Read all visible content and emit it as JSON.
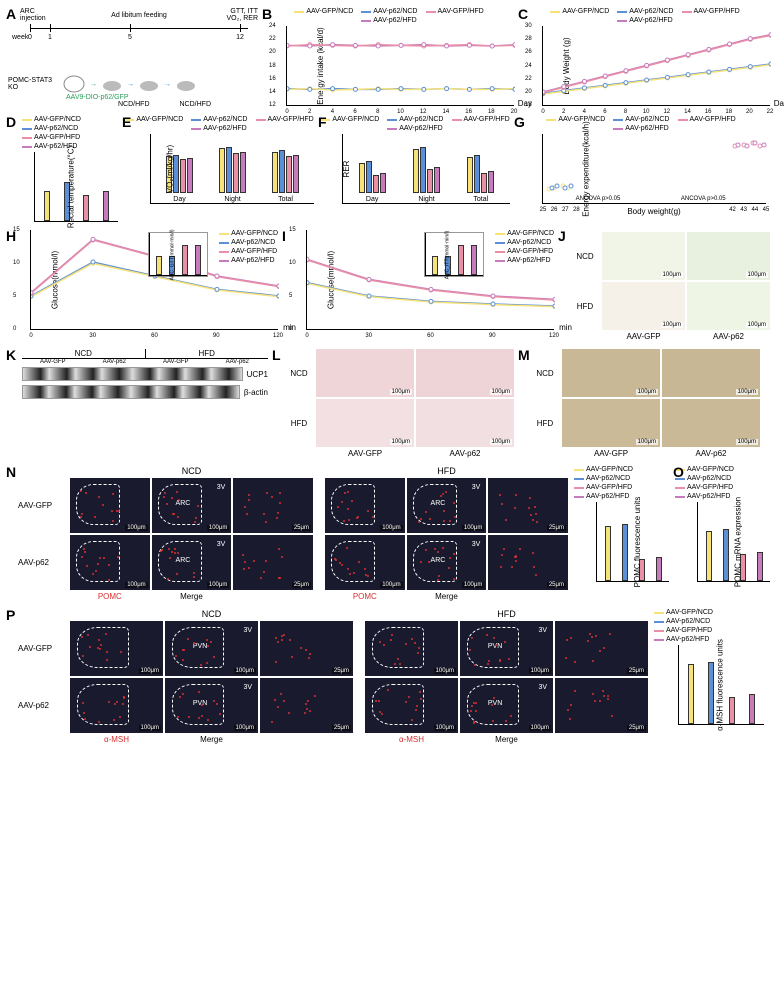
{
  "colors": {
    "gfp_ncd": "#f7e27a",
    "p62_ncd": "#5b8fd6",
    "gfp_hfd": "#e98fa6",
    "p62_hfd": "#c77bbd",
    "axis": "#000000",
    "text": "#000000",
    "dark_bg": "#18172b",
    "pomc_red": "#d93030",
    "grid": "#e0e0e0"
  },
  "legend_groups": [
    "AAV-GFP/NCD",
    "AAV-p62/NCD",
    "AAV-GFP/HFD",
    "AAV-p62/HFD"
  ],
  "A": {
    "label": "A",
    "top_labels": {
      "arc": "ARC\ninjection",
      "adlib": "Ad libitum feeding",
      "end": "GTT, ITT\nVO₂, RER"
    },
    "week_label": "week",
    "week_ticks": [
      "0",
      "1",
      "5",
      "12"
    ],
    "bottom_left": "POMC-STAT3 KO",
    "arrow_text": "AAV9-DIO-p62/GFP",
    "diet_labels": [
      "NCD/HFD",
      "NCD/HFD"
    ]
  },
  "B": {
    "label": "B",
    "ylabel": "Energy intake (kcal/d)",
    "xlabel": "Day",
    "ylim": [
      12,
      24
    ],
    "ytick_step": 2,
    "x_ticks": [
      0,
      2,
      4,
      6,
      8,
      10,
      12,
      14,
      16,
      18,
      20
    ],
    "series": {
      "gfp_ncd": [
        14.5,
        14.6,
        14.4,
        14.5,
        14.6,
        14.5,
        14.5,
        14.6,
        14.5,
        14.5,
        14.6
      ],
      "p62_ncd": [
        14.6,
        14.5,
        14.6,
        14.5,
        14.5,
        14.6,
        14.5,
        14.6,
        14.5,
        14.6,
        14.5
      ],
      "gfp_hfd": [
        21.0,
        21.2,
        21.1,
        21.0,
        21.2,
        21.1,
        21.0,
        21.1,
        21.2,
        21.0,
        21.1
      ],
      "p62_hfd": [
        21.1,
        21.0,
        21.2,
        21.1,
        21.0,
        21.1,
        21.2,
        21.0,
        21.1,
        21.0,
        21.2
      ]
    }
  },
  "C": {
    "label": "C",
    "ylabel": "Body Weight (g)",
    "xlabel": "Day",
    "ylim": [
      18,
      30
    ],
    "ytick_step": 2,
    "x_ticks": [
      0,
      2,
      4,
      6,
      8,
      10,
      12,
      14,
      16,
      18,
      20,
      22
    ],
    "series": {
      "gfp_ncd": [
        19.8,
        20.2,
        20.6,
        21.0,
        21.4,
        21.8,
        22.2,
        22.6,
        23.0,
        23.4,
        23.8,
        24.2
      ],
      "p62_ncd": [
        19.9,
        20.3,
        20.7,
        21.1,
        21.5,
        21.9,
        22.3,
        22.7,
        23.1,
        23.5,
        23.9,
        24.3
      ],
      "gfp_hfd": [
        20.0,
        20.8,
        21.6,
        22.4,
        23.2,
        24.0,
        24.8,
        25.6,
        26.4,
        27.2,
        28.0,
        28.6
      ],
      "p62_hfd": [
        20.1,
        20.9,
        21.7,
        22.5,
        23.3,
        24.1,
        24.9,
        25.7,
        26.5,
        27.3,
        28.1,
        28.7
      ]
    }
  },
  "D": {
    "label": "D",
    "ylabel": "Rectal temperature(°C)",
    "ylim": [
      36.0,
      37.5
    ],
    "ytick_step": 0.5,
    "values": {
      "gfp_ncd": 36.7,
      "p62_ncd": 36.9,
      "gfp_hfd": 36.6,
      "p62_hfd": 36.7
    }
  },
  "E": {
    "label": "E",
    "ylabel": "VO₂(ml/kg/hr)",
    "xcats": [
      "Day",
      "Night",
      "Total"
    ],
    "ylim": [
      0,
      4000
    ],
    "ytick_step": 1000,
    "data": {
      "Day": {
        "gfp_ncd": 2500,
        "p62_ncd": 2550,
        "gfp_hfd": 2300,
        "p62_hfd": 2350
      },
      "Night": {
        "gfp_ncd": 3000,
        "p62_ncd": 3100,
        "gfp_hfd": 2700,
        "p62_hfd": 2750
      },
      "Total": {
        "gfp_ncd": 2750,
        "p62_ncd": 2850,
        "gfp_hfd": 2500,
        "p62_hfd": 2550
      }
    }
  },
  "F": {
    "label": "F",
    "ylabel": "RER",
    "xcats": [
      "Day",
      "Night",
      "Total"
    ],
    "ylim": [
      0.7,
      1.0
    ],
    "ytick_step": 0.1,
    "data": {
      "Day": {
        "gfp_ncd": 0.85,
        "p62_ncd": 0.86,
        "gfp_hfd": 0.79,
        "p62_hfd": 0.8
      },
      "Night": {
        "gfp_ncd": 0.92,
        "p62_ncd": 0.93,
        "gfp_hfd": 0.82,
        "p62_hfd": 0.83
      },
      "Total": {
        "gfp_ncd": 0.88,
        "p62_ncd": 0.89,
        "gfp_hfd": 0.8,
        "p62_hfd": 0.81
      }
    }
  },
  "G": {
    "label": "G",
    "ylabel": "Energy expenditure(kcal/h)",
    "xlabel": "Body weight(g)",
    "ylim": [
      0.3,
      0.7
    ],
    "xlim": [
      25,
      45
    ],
    "xticks": [
      25,
      26,
      27,
      28,
      42,
      43,
      44,
      45
    ],
    "annot": [
      "ANCOVA p>0.05",
      "ANCOVA p>0.05"
    ],
    "points": {
      "gfp_ncd": [
        [
          25.5,
          0.35
        ],
        [
          26.0,
          0.36
        ],
        [
          26.8,
          0.37
        ],
        [
          27.2,
          0.36
        ]
      ],
      "p62_ncd": [
        [
          25.8,
          0.36
        ],
        [
          26.3,
          0.37
        ],
        [
          27.0,
          0.36
        ],
        [
          27.5,
          0.37
        ]
      ],
      "gfp_hfd": [
        [
          42.2,
          0.6
        ],
        [
          43.0,
          0.61
        ],
        [
          43.8,
          0.62
        ],
        [
          44.5,
          0.6
        ]
      ],
      "p62_hfd": [
        [
          42.5,
          0.61
        ],
        [
          43.3,
          0.6
        ],
        [
          44.0,
          0.62
        ],
        [
          44.8,
          0.61
        ]
      ]
    }
  },
  "H": {
    "label": "H",
    "ylabel": "Glucose(mmol/l)",
    "xlabel": "min",
    "ylim": [
      0,
      15
    ],
    "ytick_step": 5,
    "x_ticks": [
      0,
      30,
      60,
      90,
      120
    ],
    "series": {
      "gfp_ncd": [
        5.0,
        10.0,
        8.0,
        6.0,
        5.0
      ],
      "p62_ncd": [
        5.1,
        10.2,
        8.1,
        6.1,
        5.1
      ],
      "gfp_hfd": [
        5.5,
        13.5,
        11.0,
        8.0,
        6.5
      ],
      "p62_hfd": [
        5.6,
        13.6,
        11.1,
        8.1,
        6.6
      ]
    },
    "inset": {
      "ylabel": "AUC_GTT(mmol·min/l)",
      "ylim": [
        0,
        1200
      ],
      "values": {
        "gfp_ncd": 600,
        "p62_ncd": 610,
        "gfp_hfd": 950,
        "p62_hfd": 960
      }
    }
  },
  "I": {
    "label": "I",
    "ylabel": "Glucose(mmol/l)",
    "xlabel": "min",
    "ylim": [
      0,
      15
    ],
    "ytick_step": 5,
    "x_ticks": [
      0,
      30,
      60,
      90,
      120
    ],
    "series": {
      "gfp_ncd": [
        7.0,
        5.0,
        4.2,
        3.8,
        3.5
      ],
      "p62_ncd": [
        7.1,
        5.1,
        4.3,
        3.9,
        3.6
      ],
      "gfp_hfd": [
        10.5,
        7.5,
        6.0,
        5.0,
        4.5
      ],
      "p62_hfd": [
        10.6,
        7.6,
        6.1,
        5.1,
        4.6
      ]
    },
    "inset": {
      "ylabel": "AUC_ITT(mmol·min/l)",
      "ylim": [
        0,
        900
      ],
      "values": {
        "gfp_ncd": 450,
        "p62_ncd": 460,
        "gfp_hfd": 700,
        "p62_hfd": 710
      }
    }
  },
  "J": {
    "label": "J",
    "rows": [
      "NCD",
      "HFD"
    ],
    "cols": [
      "AAV-GFP",
      "AAV-p62"
    ],
    "scale": "100μm",
    "img_bg": [
      "#f0f5e8",
      "#e8f0e0",
      "#f5f0e8",
      "#eef5e5"
    ]
  },
  "K": {
    "label": "K",
    "col_groups": [
      "NCD",
      "HFD"
    ],
    "sub_cols": [
      "AAV-GFP",
      "AAV-p62",
      "AAV-GFP",
      "AAV-p62"
    ],
    "bands": [
      "UCP1",
      "β-actin"
    ]
  },
  "L": {
    "label": "L",
    "rows": [
      "NCD",
      "HFD"
    ],
    "cols": [
      "AAV-GFP",
      "AAV-p62"
    ],
    "scale": "100μm",
    "img_bg": [
      "#f0d5d8",
      "#efd4d7",
      "#f2e0e2",
      "#f1dfe1"
    ]
  },
  "M": {
    "label": "M",
    "rows": [
      "NCD",
      "HFD"
    ],
    "cols": [
      "AAV-GFP",
      "AAV-p62"
    ],
    "scale": "100μm",
    "img_bg": [
      "#c9b896",
      "#c8b795",
      "#cbba98",
      "#cab997"
    ]
  },
  "N": {
    "label": "N",
    "row_labels": [
      "AAV-GFP",
      "AAV-p62"
    ],
    "col_groups": [
      "NCD",
      "HFD"
    ],
    "sub_cols": [
      "POMC",
      "Merge",
      ""
    ],
    "region": "ARC",
    "ventricle": "3V",
    "scales": [
      "100μm",
      "100μm",
      "25μm"
    ],
    "bar_ylabel": "POMC fluorescence units",
    "bar_ylim": [
      0.0,
      1.5
    ],
    "bar_values": {
      "gfp_ncd": 1.1,
      "p62_ncd": 1.15,
      "gfp_hfd": 0.45,
      "p62_hfd": 0.48
    }
  },
  "O": {
    "label": "O",
    "ylabel": "POMC mRNA expression",
    "ylim": [
      0.0,
      1.5
    ],
    "values": {
      "gfp_ncd": 1.0,
      "p62_ncd": 1.05,
      "gfp_hfd": 0.55,
      "p62_hfd": 0.58
    }
  },
  "P": {
    "label": "P",
    "row_labels": [
      "AAV-GFP",
      "AAV-p62"
    ],
    "col_groups": [
      "NCD",
      "HFD"
    ],
    "sub_cols": [
      "α-MSH",
      "Merge",
      ""
    ],
    "region": "PVN",
    "ventricle": "3V",
    "scales": [
      "100μm",
      "100μm",
      "25μm"
    ],
    "bar_ylabel": "α-MSH fluorescence units",
    "bar_ylim": [
      0,
      60
    ],
    "bar_values": {
      "gfp_ncd": 48,
      "p62_ncd": 50,
      "gfp_hfd": 22,
      "p62_hfd": 24
    }
  }
}
